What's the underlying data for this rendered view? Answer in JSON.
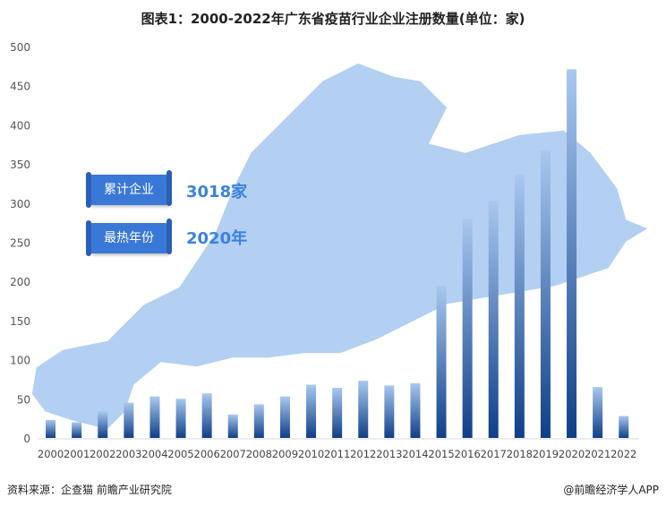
{
  "title": "图表1：2000-2022年广东省疫苗行业企业注册数量(单位：家)",
  "badges": [
    {
      "label": "累计企业",
      "value": "3018家"
    },
    {
      "label": "最热年份",
      "value": "2020年"
    }
  ],
  "source": "资料来源：企查猫 前瞻产业研究院",
  "brand": "@前瞻经济学人APP",
  "colors": {
    "bar_top": "#a9c8ef",
    "bar_bottom": "#0e3f88",
    "map": "#b3cff2",
    "accent": "#3a82e0"
  },
  "chart_data": {
    "type": "bar",
    "title": "2000-2022年广东省疫苗行业企业注册数量(单位：家)",
    "categories": [
      "2000",
      "2001",
      "2002",
      "2003",
      "2004",
      "2005",
      "2006",
      "2007",
      "2008",
      "2009",
      "2010",
      "2011",
      "2012",
      "2013",
      "2014",
      "2015",
      "2016",
      "2017",
      "2018",
      "2019",
      "2020",
      "2021",
      "2022"
    ],
    "values": [
      23,
      20,
      34,
      45,
      53,
      50,
      57,
      30,
      43,
      53,
      68,
      64,
      73,
      67,
      70,
      194,
      280,
      303,
      336,
      367,
      471,
      65,
      28
    ],
    "yticks": [
      0,
      50,
      100,
      150,
      200,
      250,
      300,
      350,
      400,
      450,
      500
    ],
    "ylim": [
      0,
      500
    ],
    "xlabel": "",
    "ylabel": "家",
    "grid": false
  }
}
